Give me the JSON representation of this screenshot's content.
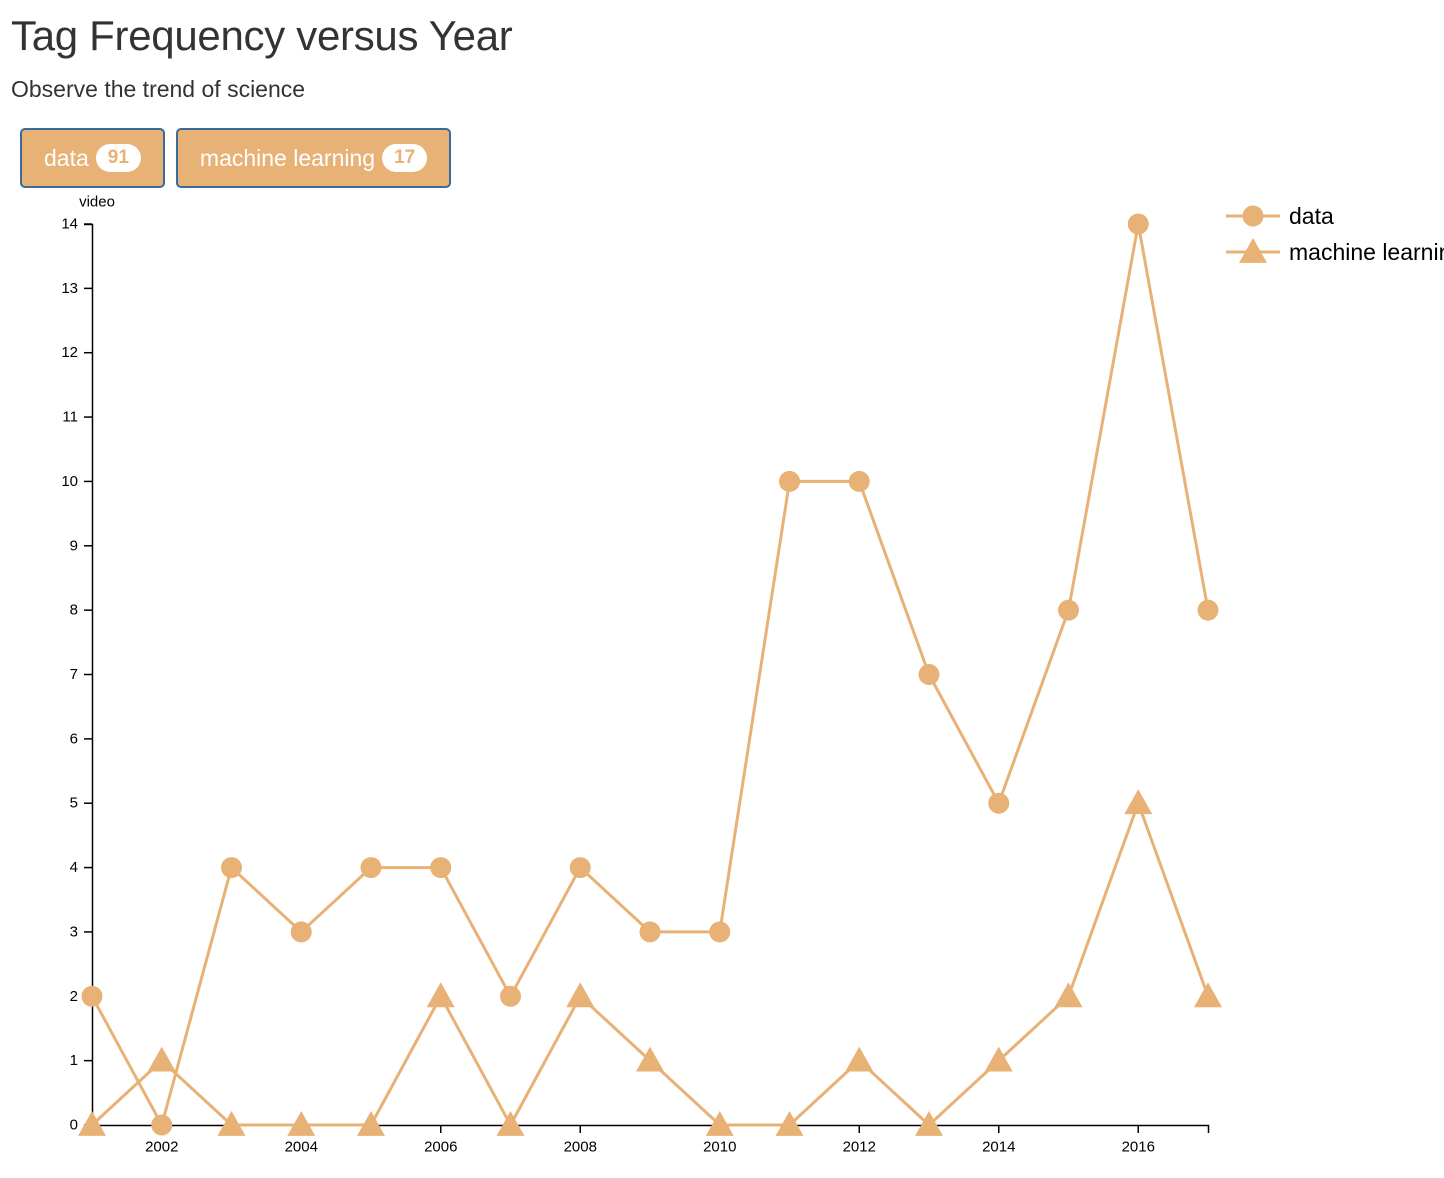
{
  "header": {
    "title": "Tag Frequency versus Year",
    "subtitle": "Observe the trend of science"
  },
  "tags": [
    {
      "label": "data",
      "count": "91"
    },
    {
      "label": "machine learning",
      "count": "17"
    }
  ],
  "colors": {
    "series": "#e8b175",
    "button_border": "#3c6a9c",
    "axis": "#000000"
  },
  "chart_data": {
    "type": "line",
    "title": "",
    "xlabel": "",
    "ylabel": "video",
    "x": [
      2001,
      2002,
      2003,
      2004,
      2005,
      2006,
      2007,
      2008,
      2009,
      2010,
      2011,
      2012,
      2013,
      2014,
      2015,
      2016,
      2017
    ],
    "xlim": [
      2001,
      2017
    ],
    "ylim": [
      0,
      14
    ],
    "xticks": [
      2002,
      2004,
      2006,
      2008,
      2010,
      2012,
      2014,
      2016
    ],
    "yticks": [
      0,
      1,
      2,
      3,
      4,
      5,
      6,
      7,
      8,
      9,
      10,
      11,
      12,
      13,
      14
    ],
    "grid": false,
    "legend": "top-right",
    "series": [
      {
        "name": "data",
        "marker": "circle",
        "values": [
          2,
          0,
          4,
          3,
          4,
          4,
          2,
          4,
          3,
          3,
          10,
          10,
          7,
          5,
          8,
          14,
          8
        ]
      },
      {
        "name": "machine learning",
        "marker": "triangle",
        "values": [
          0,
          1,
          0,
          0,
          0,
          2,
          0,
          2,
          1,
          0,
          0,
          1,
          0,
          1,
          2,
          5,
          2
        ]
      }
    ]
  }
}
